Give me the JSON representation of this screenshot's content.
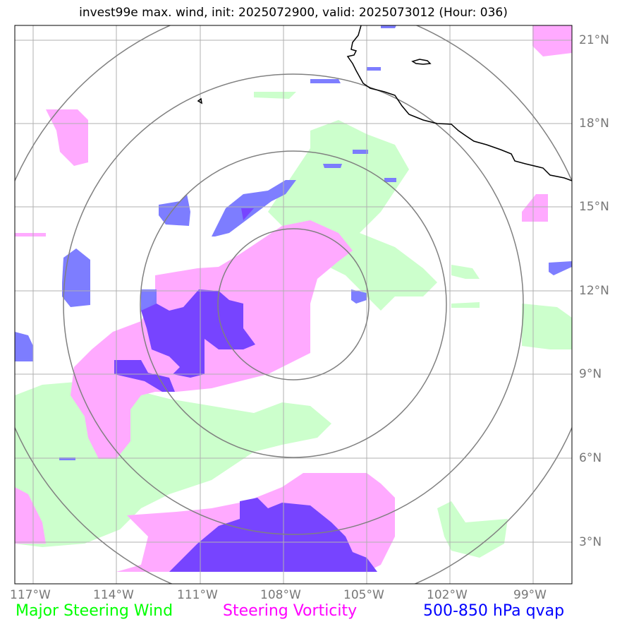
{
  "title": "invest99e max. wind, init: 2025072900, valid: 2025073012 (Hour: 036)",
  "lat_labels": [
    "21°N",
    "18°N",
    "15°N",
    "12°N",
    "9°N",
    "6°N",
    "3°N"
  ],
  "lon_labels": [
    "117°W",
    "114°W",
    "111°W",
    "108°W",
    "105°W",
    "102°W",
    "99°W"
  ],
  "legend": [
    {
      "label": "Major Steering Wind",
      "color": "#00ff00"
    },
    {
      "label": "Steering Vorticity",
      "color": "#ff00ff"
    },
    {
      "label": "500-850 hPa qvap",
      "color": "#0000ff"
    }
  ],
  "colors": {
    "steering_wind_fill": "#ccffcc",
    "vorticity_fill": "#ffaaff",
    "qvap_light_fill": "#7777ff",
    "qvap_dark_fill": "#7744ff",
    "range_ring": "#808080",
    "gridline": "#b0b0b0",
    "coastline": "#000000",
    "tick_label": "#777777"
  }
}
